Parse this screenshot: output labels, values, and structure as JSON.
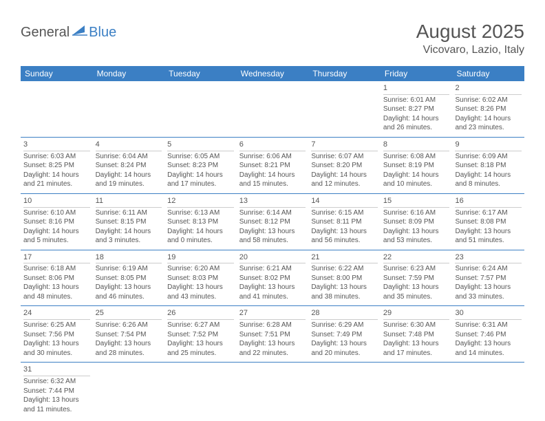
{
  "logo": {
    "word1": "General",
    "word2": "Blue"
  },
  "header": {
    "monthYear": "August 2025",
    "location": "Vicovaro, Lazio, Italy"
  },
  "colors": {
    "primary": "#3b7fc4",
    "text": "#555555",
    "background": "#ffffff",
    "cellBorder": "#cccccc"
  },
  "dayHeaders": [
    "Sunday",
    "Monday",
    "Tuesday",
    "Wednesday",
    "Thursday",
    "Friday",
    "Saturday"
  ],
  "weeks": [
    [
      null,
      null,
      null,
      null,
      null,
      {
        "num": "1",
        "sunrise": "Sunrise: 6:01 AM",
        "sunset": "Sunset: 8:27 PM",
        "daylight1": "Daylight: 14 hours",
        "daylight2": "and 26 minutes."
      },
      {
        "num": "2",
        "sunrise": "Sunrise: 6:02 AM",
        "sunset": "Sunset: 8:26 PM",
        "daylight1": "Daylight: 14 hours",
        "daylight2": "and 23 minutes."
      }
    ],
    [
      {
        "num": "3",
        "sunrise": "Sunrise: 6:03 AM",
        "sunset": "Sunset: 8:25 PM",
        "daylight1": "Daylight: 14 hours",
        "daylight2": "and 21 minutes."
      },
      {
        "num": "4",
        "sunrise": "Sunrise: 6:04 AM",
        "sunset": "Sunset: 8:24 PM",
        "daylight1": "Daylight: 14 hours",
        "daylight2": "and 19 minutes."
      },
      {
        "num": "5",
        "sunrise": "Sunrise: 6:05 AM",
        "sunset": "Sunset: 8:23 PM",
        "daylight1": "Daylight: 14 hours",
        "daylight2": "and 17 minutes."
      },
      {
        "num": "6",
        "sunrise": "Sunrise: 6:06 AM",
        "sunset": "Sunset: 8:21 PM",
        "daylight1": "Daylight: 14 hours",
        "daylight2": "and 15 minutes."
      },
      {
        "num": "7",
        "sunrise": "Sunrise: 6:07 AM",
        "sunset": "Sunset: 8:20 PM",
        "daylight1": "Daylight: 14 hours",
        "daylight2": "and 12 minutes."
      },
      {
        "num": "8",
        "sunrise": "Sunrise: 6:08 AM",
        "sunset": "Sunset: 8:19 PM",
        "daylight1": "Daylight: 14 hours",
        "daylight2": "and 10 minutes."
      },
      {
        "num": "9",
        "sunrise": "Sunrise: 6:09 AM",
        "sunset": "Sunset: 8:18 PM",
        "daylight1": "Daylight: 14 hours",
        "daylight2": "and 8 minutes."
      }
    ],
    [
      {
        "num": "10",
        "sunrise": "Sunrise: 6:10 AM",
        "sunset": "Sunset: 8:16 PM",
        "daylight1": "Daylight: 14 hours",
        "daylight2": "and 5 minutes."
      },
      {
        "num": "11",
        "sunrise": "Sunrise: 6:11 AM",
        "sunset": "Sunset: 8:15 PM",
        "daylight1": "Daylight: 14 hours",
        "daylight2": "and 3 minutes."
      },
      {
        "num": "12",
        "sunrise": "Sunrise: 6:13 AM",
        "sunset": "Sunset: 8:13 PM",
        "daylight1": "Daylight: 14 hours",
        "daylight2": "and 0 minutes."
      },
      {
        "num": "13",
        "sunrise": "Sunrise: 6:14 AM",
        "sunset": "Sunset: 8:12 PM",
        "daylight1": "Daylight: 13 hours",
        "daylight2": "and 58 minutes."
      },
      {
        "num": "14",
        "sunrise": "Sunrise: 6:15 AM",
        "sunset": "Sunset: 8:11 PM",
        "daylight1": "Daylight: 13 hours",
        "daylight2": "and 56 minutes."
      },
      {
        "num": "15",
        "sunrise": "Sunrise: 6:16 AM",
        "sunset": "Sunset: 8:09 PM",
        "daylight1": "Daylight: 13 hours",
        "daylight2": "and 53 minutes."
      },
      {
        "num": "16",
        "sunrise": "Sunrise: 6:17 AM",
        "sunset": "Sunset: 8:08 PM",
        "daylight1": "Daylight: 13 hours",
        "daylight2": "and 51 minutes."
      }
    ],
    [
      {
        "num": "17",
        "sunrise": "Sunrise: 6:18 AM",
        "sunset": "Sunset: 8:06 PM",
        "daylight1": "Daylight: 13 hours",
        "daylight2": "and 48 minutes."
      },
      {
        "num": "18",
        "sunrise": "Sunrise: 6:19 AM",
        "sunset": "Sunset: 8:05 PM",
        "daylight1": "Daylight: 13 hours",
        "daylight2": "and 46 minutes."
      },
      {
        "num": "19",
        "sunrise": "Sunrise: 6:20 AM",
        "sunset": "Sunset: 8:03 PM",
        "daylight1": "Daylight: 13 hours",
        "daylight2": "and 43 minutes."
      },
      {
        "num": "20",
        "sunrise": "Sunrise: 6:21 AM",
        "sunset": "Sunset: 8:02 PM",
        "daylight1": "Daylight: 13 hours",
        "daylight2": "and 41 minutes."
      },
      {
        "num": "21",
        "sunrise": "Sunrise: 6:22 AM",
        "sunset": "Sunset: 8:00 PM",
        "daylight1": "Daylight: 13 hours",
        "daylight2": "and 38 minutes."
      },
      {
        "num": "22",
        "sunrise": "Sunrise: 6:23 AM",
        "sunset": "Sunset: 7:59 PM",
        "daylight1": "Daylight: 13 hours",
        "daylight2": "and 35 minutes."
      },
      {
        "num": "23",
        "sunrise": "Sunrise: 6:24 AM",
        "sunset": "Sunset: 7:57 PM",
        "daylight1": "Daylight: 13 hours",
        "daylight2": "and 33 minutes."
      }
    ],
    [
      {
        "num": "24",
        "sunrise": "Sunrise: 6:25 AM",
        "sunset": "Sunset: 7:56 PM",
        "daylight1": "Daylight: 13 hours",
        "daylight2": "and 30 minutes."
      },
      {
        "num": "25",
        "sunrise": "Sunrise: 6:26 AM",
        "sunset": "Sunset: 7:54 PM",
        "daylight1": "Daylight: 13 hours",
        "daylight2": "and 28 minutes."
      },
      {
        "num": "26",
        "sunrise": "Sunrise: 6:27 AM",
        "sunset": "Sunset: 7:52 PM",
        "daylight1": "Daylight: 13 hours",
        "daylight2": "and 25 minutes."
      },
      {
        "num": "27",
        "sunrise": "Sunrise: 6:28 AM",
        "sunset": "Sunset: 7:51 PM",
        "daylight1": "Daylight: 13 hours",
        "daylight2": "and 22 minutes."
      },
      {
        "num": "28",
        "sunrise": "Sunrise: 6:29 AM",
        "sunset": "Sunset: 7:49 PM",
        "daylight1": "Daylight: 13 hours",
        "daylight2": "and 20 minutes."
      },
      {
        "num": "29",
        "sunrise": "Sunrise: 6:30 AM",
        "sunset": "Sunset: 7:48 PM",
        "daylight1": "Daylight: 13 hours",
        "daylight2": "and 17 minutes."
      },
      {
        "num": "30",
        "sunrise": "Sunrise: 6:31 AM",
        "sunset": "Sunset: 7:46 PM",
        "daylight1": "Daylight: 13 hours",
        "daylight2": "and 14 minutes."
      }
    ],
    [
      {
        "num": "31",
        "sunrise": "Sunrise: 6:32 AM",
        "sunset": "Sunset: 7:44 PM",
        "daylight1": "Daylight: 13 hours",
        "daylight2": "and 11 minutes."
      },
      null,
      null,
      null,
      null,
      null,
      null
    ]
  ]
}
